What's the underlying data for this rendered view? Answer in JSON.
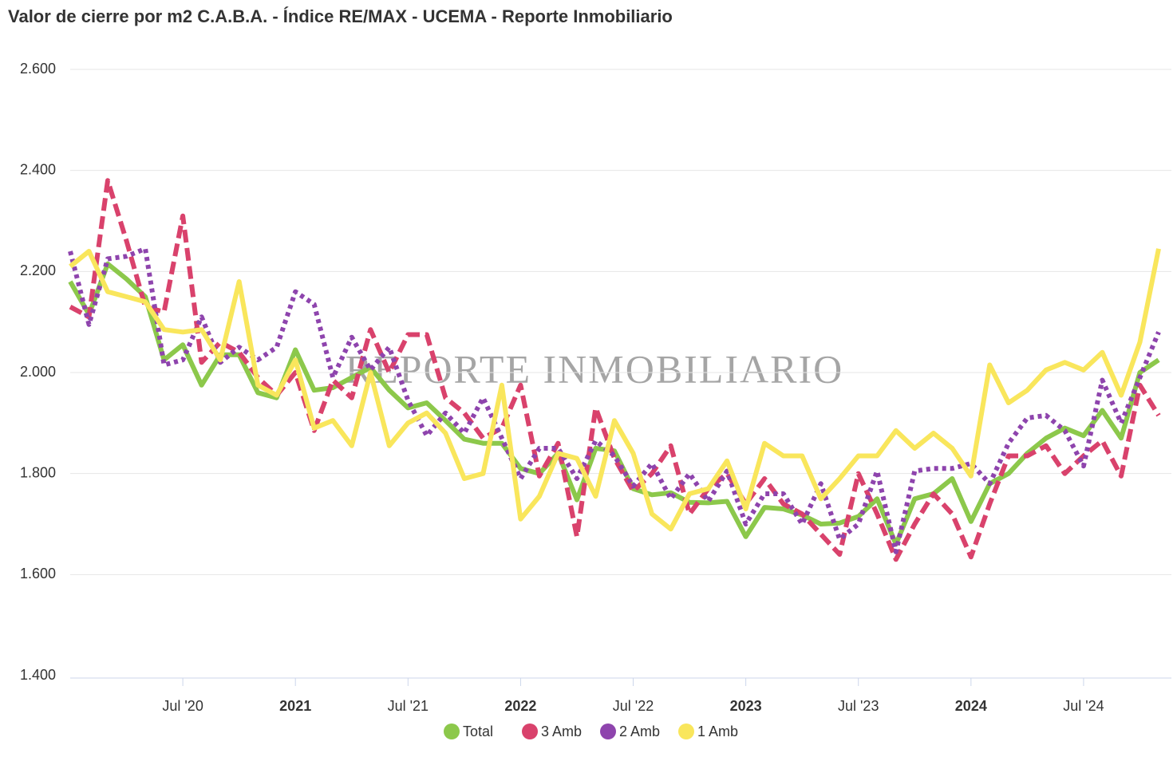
{
  "chart_data": {
    "type": "line",
    "title": "Valor de cierre por m2 C.A.B.A. - Índice RE/MAX - UCEMA - Reporte Inmobiliario",
    "watermark": "REPORTE INMOBILIARIO",
    "x": [
      "2020-01",
      "2020-02",
      "2020-03",
      "2020-04",
      "2020-05",
      "2020-06",
      "2020-07",
      "2020-08",
      "2020-09",
      "2020-10",
      "2020-11",
      "2020-12",
      "2021-01",
      "2021-02",
      "2021-03",
      "2021-04",
      "2021-05",
      "2021-06",
      "2021-07",
      "2021-08",
      "2021-09",
      "2021-10",
      "2021-11",
      "2021-12",
      "2022-01",
      "2022-02",
      "2022-03",
      "2022-04",
      "2022-05",
      "2022-06",
      "2022-07",
      "2022-08",
      "2022-09",
      "2022-10",
      "2022-11",
      "2022-12",
      "2023-01",
      "2023-02",
      "2023-03",
      "2023-04",
      "2023-05",
      "2023-06",
      "2023-07",
      "2023-08",
      "2023-09",
      "2023-10",
      "2023-11",
      "2023-12",
      "2024-01",
      "2024-02",
      "2024-03",
      "2024-04",
      "2024-05",
      "2024-06",
      "2024-07",
      "2024-08",
      "2024-09",
      "2024-10",
      "2024-11"
    ],
    "xlim": [
      "2020-01",
      "2024-11"
    ],
    "xticks": [
      {
        "value": "2020-07",
        "label": "Jul '20"
      },
      {
        "value": "2021-01",
        "label": "2021"
      },
      {
        "value": "2021-07",
        "label": "Jul '21"
      },
      {
        "value": "2022-01",
        "label": "2022"
      },
      {
        "value": "2022-07",
        "label": "Jul '22"
      },
      {
        "value": "2023-01",
        "label": "2023"
      },
      {
        "value": "2023-07",
        "label": "Jul '23"
      },
      {
        "value": "2024-01",
        "label": "2024"
      },
      {
        "value": "2024-07",
        "label": "Jul '24"
      }
    ],
    "ylim": [
      1400,
      2600
    ],
    "yticks": [
      {
        "value": 1400,
        "label": "1.400"
      },
      {
        "value": 1600,
        "label": "1.600"
      },
      {
        "value": 1800,
        "label": "1.800"
      },
      {
        "value": 2000,
        "label": "2.000"
      },
      {
        "value": 2200,
        "label": "2.200"
      },
      {
        "value": 2400,
        "label": "2.400"
      },
      {
        "value": 2600,
        "label": "2.600"
      }
    ],
    "grid": true,
    "legend": "bottom",
    "series": [
      {
        "name": "Total",
        "color": "#8cc84b",
        "style": "solid",
        "values": [
          2180,
          2115,
          2215,
          2185,
          2150,
          2025,
          2055,
          1975,
          2035,
          2035,
          1960,
          1950,
          2045,
          1965,
          1970,
          1990,
          2010,
          1965,
          1930,
          1940,
          1905,
          1868,
          1860,
          1860,
          1810,
          1800,
          1840,
          1748,
          1850,
          1845,
          1770,
          1758,
          1762,
          1743,
          1742,
          1745,
          1675,
          1733,
          1730,
          1718,
          1700,
          1702,
          1715,
          1750,
          1660,
          1750,
          1760,
          1790,
          1705,
          1780,
          1800,
          1840,
          1870,
          1890,
          1875,
          1925,
          1870,
          2000,
          2025
        ]
      },
      {
        "name": "3 Amb",
        "color": "#d9426c",
        "style": "dashed",
        "values": [
          2130,
          2110,
          2380,
          2260,
          2130,
          2120,
          2310,
          2020,
          2060,
          2040,
          1990,
          1955,
          2000,
          1885,
          1985,
          1950,
          2085,
          2000,
          2075,
          2075,
          1950,
          1920,
          1870,
          1890,
          1975,
          1795,
          1860,
          1675,
          1930,
          1830,
          1765,
          1800,
          1855,
          1720,
          1770,
          1800,
          1740,
          1790,
          1740,
          1720,
          1680,
          1640,
          1800,
          1720,
          1630,
          1700,
          1760,
          1720,
          1635,
          1740,
          1835,
          1835,
          1855,
          1800,
          1835,
          1865,
          1795,
          1975,
          1915
        ]
      },
      {
        "name": "2 Amb",
        "color": "#8e44ad",
        "style": "dotted",
        "values": [
          2240,
          2095,
          2225,
          2230,
          2245,
          2015,
          2025,
          2110,
          2020,
          2050,
          2025,
          2050,
          2160,
          2135,
          1990,
          2070,
          2005,
          2050,
          1945,
          1875,
          1920,
          1880,
          1950,
          1870,
          1790,
          1850,
          1850,
          1790,
          1865,
          1835,
          1775,
          1820,
          1750,
          1800,
          1745,
          1805,
          1700,
          1760,
          1760,
          1700,
          1780,
          1670,
          1700,
          1805,
          1645,
          1805,
          1810,
          1810,
          1820,
          1780,
          1860,
          1910,
          1915,
          1885,
          1815,
          1985,
          1900,
          1990,
          2080
        ]
      },
      {
        "name": "1 Amb",
        "color": "#f9e65c",
        "style": "solid",
        "values": [
          2210,
          2240,
          2160,
          2150,
          2140,
          2085,
          2080,
          2085,
          2025,
          2180,
          1975,
          1955,
          2025,
          1890,
          1905,
          1855,
          2000,
          1855,
          1900,
          1920,
          1880,
          1790,
          1800,
          1975,
          1710,
          1755,
          1840,
          1830,
          1755,
          1905,
          1840,
          1720,
          1690,
          1760,
          1770,
          1825,
          1730,
          1860,
          1835,
          1835,
          1750,
          1790,
          1835,
          1835,
          1885,
          1850,
          1880,
          1850,
          1795,
          2015,
          1940,
          1965,
          2005,
          2020,
          2005,
          2040,
          1955,
          2060,
          2245
        ]
      }
    ]
  }
}
